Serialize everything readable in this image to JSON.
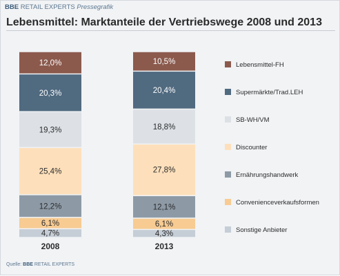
{
  "header": {
    "brand_bold": "BBE",
    "brand_rest": "RETAIL EXPERTS",
    "brand_tag": "Pressegrafik"
  },
  "footer": {
    "source_label": "Quelle:",
    "brand_bold": "BBE",
    "brand_rest": "RETAIL EXPERTS"
  },
  "chart_data": {
    "type": "bar",
    "stacked": true,
    "title": "Lebensmittel: Marktanteile der Vertriebswege 2008 und 2013",
    "xlabel": "",
    "ylabel": "",
    "ylim": [
      0,
      100
    ],
    "grid": false,
    "legend_position": "right",
    "categories": [
      "2008",
      "2013"
    ],
    "series": [
      {
        "name": "Sonstige Anbieter",
        "values": [
          4.7,
          4.3
        ],
        "labels": [
          "4,7%",
          "4,3%"
        ],
        "color": "#c5cdd6"
      },
      {
        "name": "Convenienceverkaufsformen",
        "values": [
          6.1,
          6.1
        ],
        "labels": [
          "6,1%",
          "6,1%"
        ],
        "color": "#f7cb92"
      },
      {
        "name": "Ernährungshandwerk",
        "values": [
          12.2,
          12.1
        ],
        "labels": [
          "12,2%",
          "12,1%"
        ],
        "color": "#8d9aa6"
      },
      {
        "name": "Discounter",
        "values": [
          25.4,
          27.8
        ],
        "labels": [
          "25,4%",
          "27,8%"
        ],
        "color": "#fde0bb"
      },
      {
        "name": "SB-WH/VM",
        "values": [
          19.3,
          18.8
        ],
        "labels": [
          "19,3%",
          "18,8%"
        ],
        "color": "#dde1e6"
      },
      {
        "name": "Supermärkte/Trad.LEH",
        "values": [
          20.3,
          20.4
        ],
        "labels": [
          "20,3%",
          "20,4%"
        ],
        "color": "#506a80"
      },
      {
        "name": "Lebensmittel-FH",
        "values": [
          12.0,
          10.5
        ],
        "labels": [
          "12,0%",
          "10,5%"
        ],
        "color": "#8b5a4d"
      }
    ],
    "legend_order": [
      "Lebensmittel-FH",
      "Supermärkte/Trad.LEH",
      "SB-WH/VM",
      "Discounter",
      "Ernährungshandwerk",
      "Convenienceverkaufsformen",
      "Sonstige Anbieter"
    ]
  }
}
